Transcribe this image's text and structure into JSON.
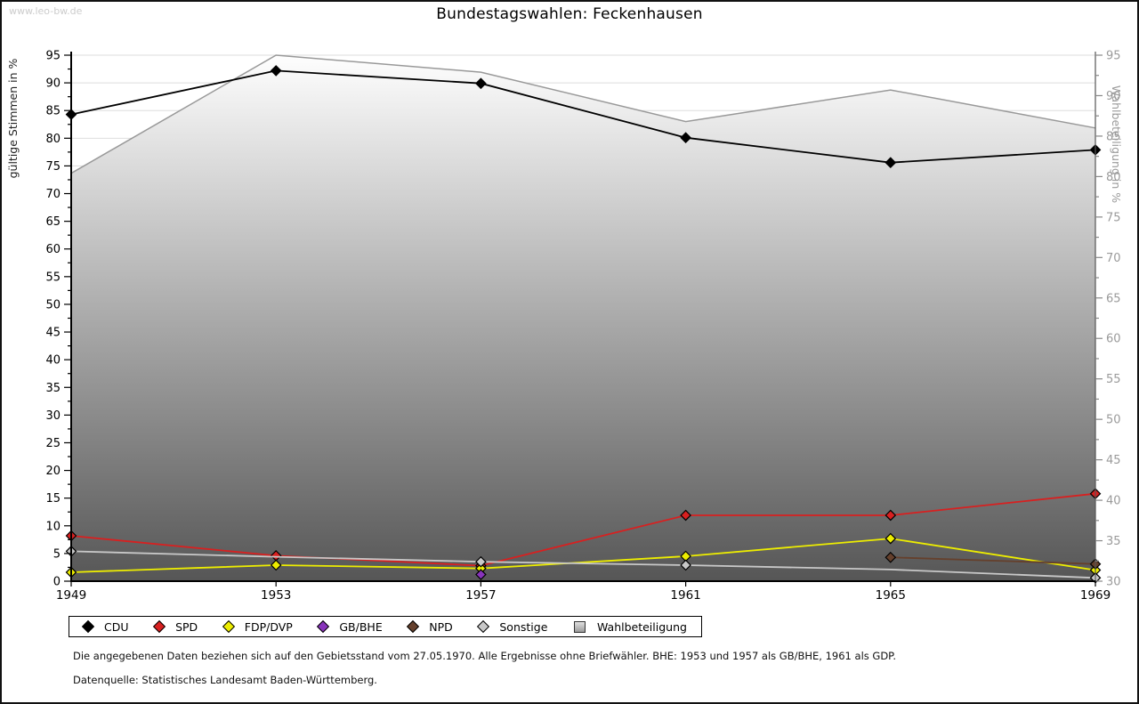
{
  "watermark": "www.leo-bw.de",
  "title": "Bundestagswahlen: Feckenhausen",
  "footnotes": [
    "Die angegebenen Daten beziehen sich auf den Gebietsstand vom 27.05.1970. Alle Ergebnisse ohne Briefwähler. BHE: 1953 und 1957 als GB/BHE, 1961 als GDP.",
    "Datenquelle: Statistisches Landesamt Baden-Württemberg."
  ],
  "chart_data": {
    "type": "line",
    "title": "Bundestagswahlen: Feckenhausen",
    "x_categories": [
      "1949",
      "1953",
      "1957",
      "1961",
      "1965",
      "1969"
    ],
    "left_axis": {
      "label": "gültige Stimmen in %",
      "min": 0,
      "max": 95,
      "tick_step": 5,
      "minor_step": 2.5
    },
    "right_axis": {
      "label": "Wahlbeteiligung in %",
      "min": 30,
      "max": 95,
      "tick_step": 5,
      "minor_step": 2.5
    },
    "grid": true,
    "legend_position": "bottom",
    "series": [
      {
        "name": "CDU",
        "slug": "cdu",
        "type": "line",
        "axis": "left",
        "color": "#000000",
        "marker": "diamond",
        "values": [
          84.3,
          92.2,
          89.9,
          80.1,
          75.6,
          77.9
        ]
      },
      {
        "name": "SPD",
        "slug": "spd",
        "type": "line",
        "axis": "left",
        "color": "#d82020",
        "marker": "diamond",
        "values": [
          8.2,
          4.6,
          2.8,
          11.9,
          11.9,
          15.8
        ]
      },
      {
        "name": "FDP/DVP",
        "slug": "fdp-dvp",
        "type": "line",
        "axis": "left",
        "color": "#eded00",
        "marker": "diamond",
        "values": [
          1.6,
          2.9,
          2.3,
          4.5,
          7.7,
          2.0
        ]
      },
      {
        "name": "GB/BHE",
        "slug": "gb-bhe",
        "type": "line",
        "axis": "left",
        "color": "#8833bb",
        "marker": "diamond",
        "values": [
          null,
          null,
          1.2,
          null,
          null,
          null
        ]
      },
      {
        "name": "NPD",
        "slug": "npd",
        "type": "line",
        "axis": "left",
        "color": "#65402c",
        "marker": "diamond",
        "values": [
          null,
          null,
          null,
          null,
          4.3,
          3.1
        ]
      },
      {
        "name": "Sonstige",
        "slug": "sonstige",
        "type": "line",
        "axis": "left",
        "color": "#c8c8c8",
        "marker": "diamond",
        "values": [
          5.4,
          4.4,
          3.5,
          2.9,
          2.1,
          0.6
        ],
        "marker_visible": [
          true,
          false,
          true,
          true,
          false,
          true
        ]
      },
      {
        "name": "Wahlbeteiligung",
        "slug": "wahlbeteiligung",
        "type": "area",
        "axis": "right",
        "color": "#999999",
        "marker": "square",
        "fill_gradient": [
          "#fefefe",
          "#565656"
        ],
        "values": [
          80.4,
          95.0,
          92.9,
          86.8,
          90.7,
          86.0
        ]
      }
    ]
  }
}
